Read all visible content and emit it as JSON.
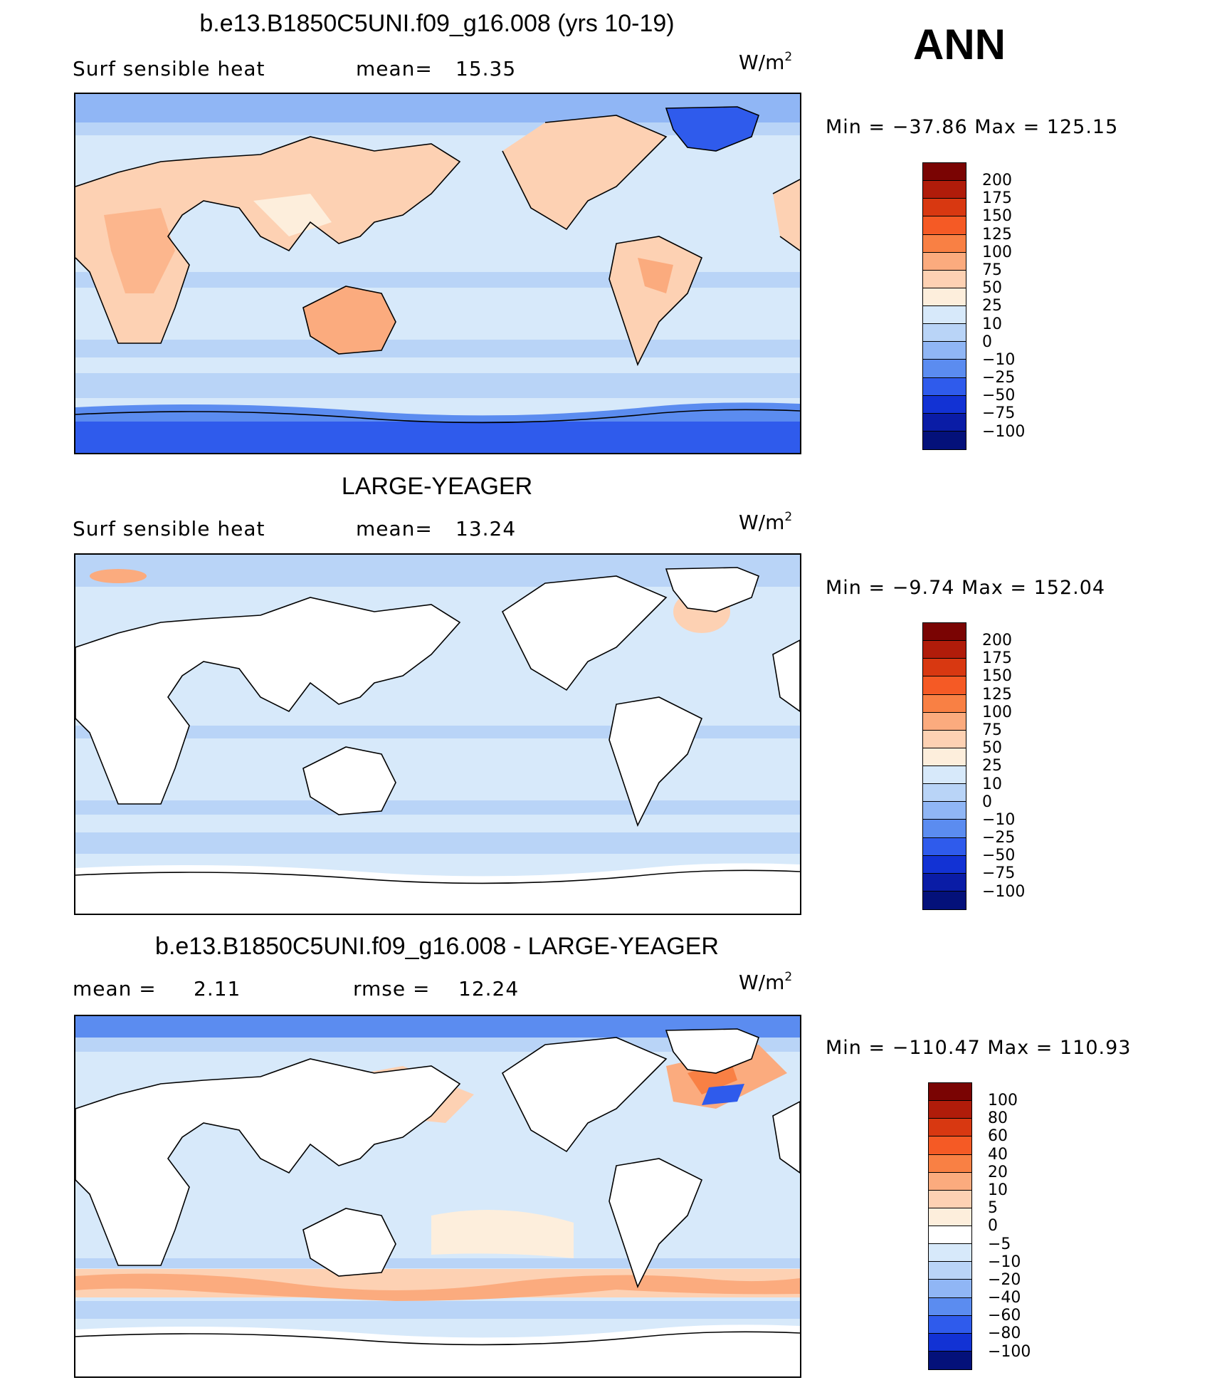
{
  "season": "ANN",
  "units": "W/m",
  "units_exp": "2",
  "panels": [
    {
      "title": "b.e13.B1850C5UNI.f09_g16.008 (yrs 10-19)",
      "left_label": "Surf  sensible  heat",
      "stat_label": "mean=",
      "stat_value": "15.35",
      "minmax": "Min  =  −37.86  Max  =  125.15",
      "colorbar": {
        "levels": [
          "200",
          "175",
          "150",
          "125",
          "100",
          "75",
          "50",
          "25",
          "10",
          "0",
          "−10",
          "−25",
          "−50",
          "−75",
          "−100"
        ],
        "colors": [
          "#7a0403",
          "#b01c0a",
          "#d83811",
          "#f55a25",
          "#f98044",
          "#fbab7e",
          "#fdd1b3",
          "#fdeedc",
          "#d7e9fa",
          "#b9d4f7",
          "#90b6f5",
          "#5b8cf0",
          "#2f5bec",
          "#1232d4",
          "#0a1ca6",
          "#04117a"
        ]
      },
      "map_fill": "ocean"
    },
    {
      "title": "LARGE-YEAGER",
      "left_label": "Surf  sensible  heat",
      "stat_label": "mean=",
      "stat_value": "13.24",
      "minmax": "Min  =   −9.74  Max  =  152.04",
      "colorbar": {
        "levels": [
          "200",
          "175",
          "150",
          "125",
          "100",
          "75",
          "50",
          "25",
          "10",
          "0",
          "−10",
          "−25",
          "−50",
          "−75",
          "−100"
        ],
        "colors": [
          "#7a0403",
          "#b01c0a",
          "#d83811",
          "#f55a25",
          "#f98044",
          "#fbab7e",
          "#fdd1b3",
          "#fdeedc",
          "#d7e9fa",
          "#b9d4f7",
          "#90b6f5",
          "#5b8cf0",
          "#2f5bec",
          "#1232d4",
          "#0a1ca6",
          "#04117a"
        ]
      },
      "map_fill": "ocean-only"
    },
    {
      "title": "b.e13.B1850C5UNI.f09_g16.008 - LARGE-YEAGER",
      "left_label": "mean  =",
      "left_value": "2.11",
      "stat_label": "rmse  =",
      "stat_value": "12.24",
      "minmax": "Min  =  −110.47  Max  =  110.93",
      "colorbar": {
        "levels": [
          "100",
          "80",
          "60",
          "40",
          "20",
          "10",
          "5",
          "0",
          "−5",
          "−10",
          "−20",
          "−40",
          "−60",
          "−80",
          "−100"
        ],
        "colors": [
          "#7a0403",
          "#b01c0a",
          "#d83811",
          "#f55a25",
          "#f98044",
          "#fbab7e",
          "#fdd1b3",
          "#fdeedc",
          "#ffffff",
          "#d7e9fa",
          "#b9d4f7",
          "#90b6f5",
          "#5b8cf0",
          "#2f5bec",
          "#1232d4",
          "#04117a"
        ]
      },
      "map_fill": "difference"
    }
  ]
}
